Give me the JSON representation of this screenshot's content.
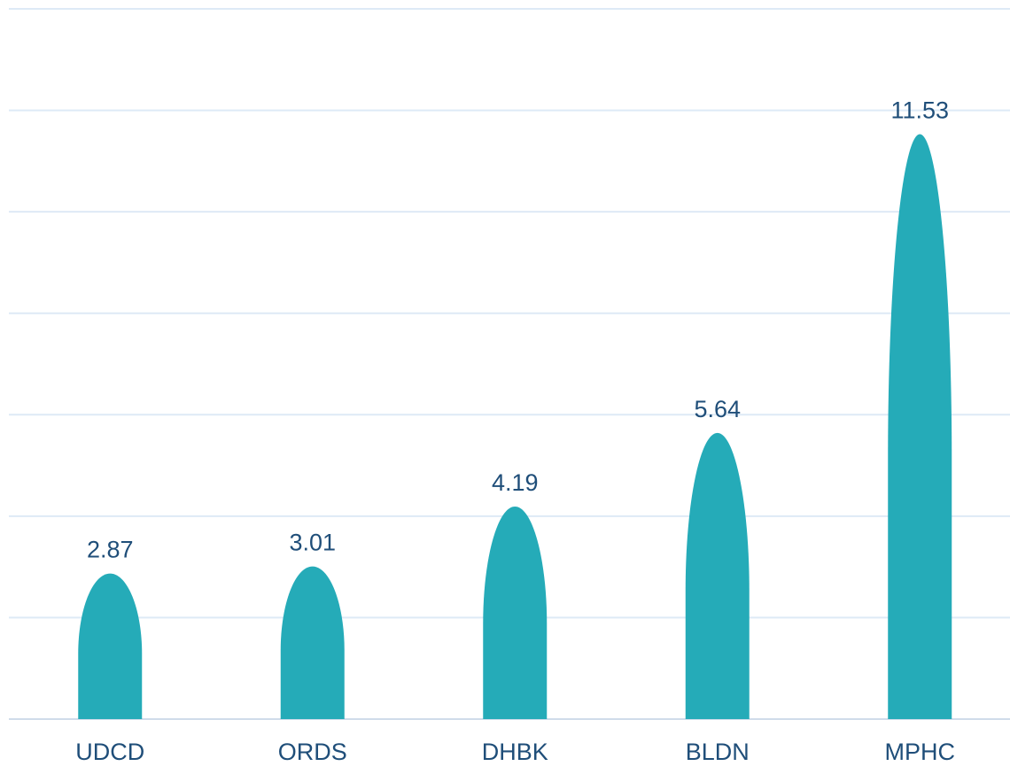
{
  "chart_data": {
    "type": "bar",
    "categories": [
      "UDCD",
      "ORDS",
      "DHBK",
      "BLDN",
      "MPHC"
    ],
    "values": [
      2.87,
      3.01,
      4.19,
      5.64,
      11.53
    ],
    "data_labels": [
      "2.87",
      "3.01",
      "4.19",
      "5.64",
      "11.53"
    ],
    "ylim": [
      0,
      14
    ],
    "grid": true,
    "bar_shape": "bullet (rounded top)",
    "colors": {
      "bar": "#25ABB8",
      "label_text": "#1F4E79",
      "gridline": "#DEEAF6",
      "axis_line": "#D0DCEA"
    }
  }
}
